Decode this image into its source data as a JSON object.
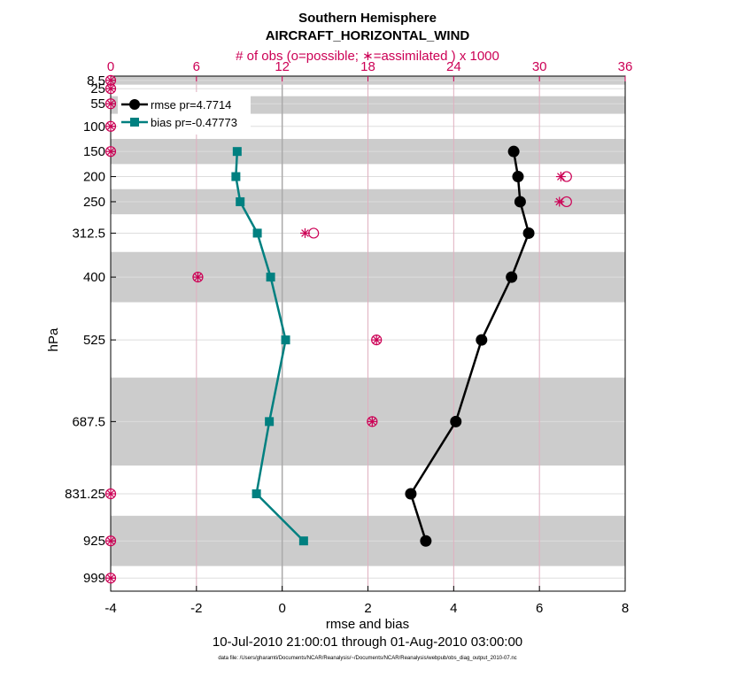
{
  "chart_data": {
    "type": "line",
    "title": "Southern Hemisphere",
    "subtitle": "AIRCRAFT_HORIZONTAL_WIND",
    "top_axis_label": "# of obs (o=possible; ∗=assimilated ) x 1000",
    "xlabel": "rmse and bias",
    "ylabel": "hPa",
    "date_range": "10-Jul-2010 21:00:01 through 01-Aug-2010 03:00:00",
    "footnote": "data file: /Users/gharamti/Documents/NCAR/Reanalysis/~/Documents/NCAR/Reanalysis/webpub/obs_diag_output_2010-07.nc",
    "xlim": [
      -4,
      8
    ],
    "xticks": [
      "-4",
      "-2",
      "0",
      "2",
      "4",
      "6",
      "8"
    ],
    "top_xlim": [
      0,
      36
    ],
    "top_xticks": [
      "0",
      "6",
      "12",
      "18",
      "24",
      "30",
      "36"
    ],
    "ylim": [
      1025,
      0
    ],
    "y_scale": "linear, inverted (pressure increases downward)",
    "yticks": [
      "8.5",
      "25",
      "55",
      "100",
      "150",
      "200",
      "250",
      "312.5",
      "400",
      "525",
      "687.5",
      "831.25",
      "925",
      "999"
    ],
    "shaded_layers_hPa": [
      [
        0,
        17
      ],
      [
        40,
        75
      ],
      [
        125,
        175
      ],
      [
        225,
        275
      ],
      [
        350,
        450
      ],
      [
        600,
        775
      ],
      [
        875,
        975
      ]
    ],
    "grid": true,
    "legend_position": "top-left",
    "colors": {
      "rmse": "#000000",
      "bias": "#008080",
      "obs": "#cc0055",
      "shade": "#cccccc",
      "grid": "#dddddd"
    },
    "series": [
      {
        "name": "rmse pr=4.7714",
        "marker": "circle",
        "levels": [
          150,
          200,
          250,
          312.5,
          400,
          525,
          687.5,
          831.25,
          925
        ],
        "values": [
          5.4,
          5.5,
          5.55,
          5.75,
          5.35,
          4.65,
          4.05,
          3.0,
          3.35
        ]
      },
      {
        "name": "bias pr=-0.47773",
        "marker": "square",
        "levels": [
          150,
          200,
          250,
          312.5,
          400,
          525,
          687.5,
          831.25,
          925
        ],
        "values": [
          -1.05,
          -1.08,
          -0.98,
          -0.58,
          -0.27,
          0.08,
          -0.3,
          -0.6,
          0.5
        ]
      }
    ],
    "obs_counts_x1000": {
      "levels": [
        8.5,
        25,
        55,
        100,
        150,
        200,
        250,
        312.5,
        400,
        525,
        687.5,
        831.25,
        925,
        999
      ],
      "possible": [
        0,
        0,
        0,
        0,
        0,
        31.9,
        31.9,
        14.2,
        6.1,
        18.6,
        18.3,
        0,
        0,
        0
      ],
      "assimilated": [
        0,
        0,
        0,
        0,
        0,
        31.5,
        31.4,
        13.6,
        6.1,
        18.6,
        18.3,
        0,
        0,
        0
      ]
    }
  }
}
